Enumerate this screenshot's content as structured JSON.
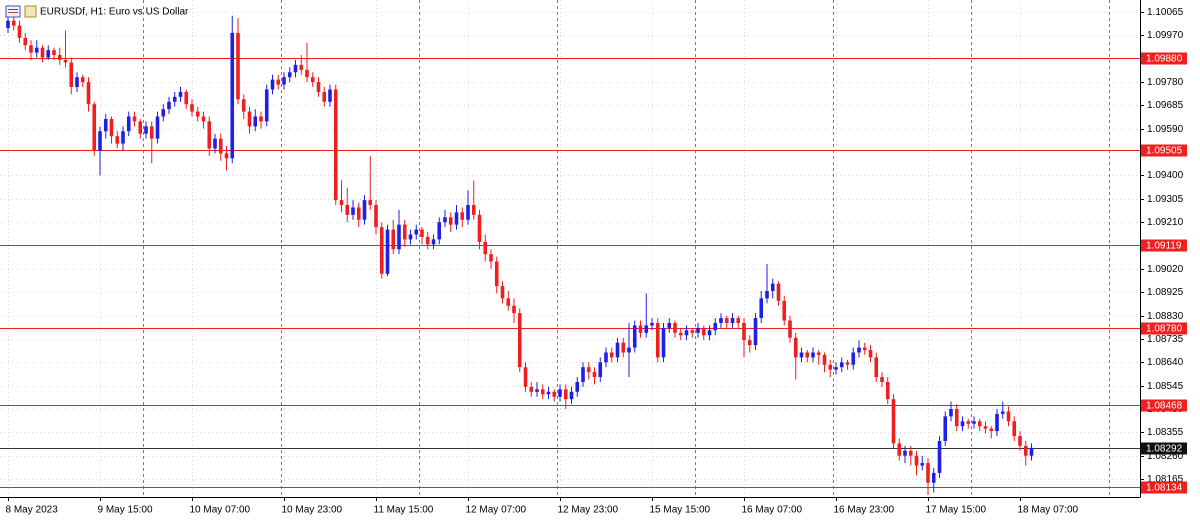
{
  "chart_data": {
    "type": "candlestick",
    "title": "EURUSDf, H1:  Euro vs US Dollar",
    "up_color": "#1f1fe6",
    "down_color": "#f01e1e",
    "grid": true,
    "ylim": [
      1.08092,
      1.10114
    ],
    "yticks": [
      1.10065,
      {
        "value": 1.0997,
        "label": "1.09970"
      },
      {
        "value": 1.0978,
        "label": "1.09780"
      },
      1.09685,
      {
        "value": 1.0959,
        "label": "1.09590"
      },
      {
        "value": 1.094,
        "label": "1.09400"
      },
      1.09305,
      {
        "value": 1.0921,
        "label": "1.09210"
      },
      {
        "value": 1.0902,
        "label": "1.09020"
      },
      1.08925,
      {
        "value": 1.0883,
        "label": "1.08830"
      },
      1.08735,
      {
        "value": 1.0864,
        "label": "1.08640"
      },
      1.08545,
      {
        "value": 1.0845,
        "label": "1.08450"
      },
      1.08355,
      {
        "value": 1.0826,
        "label": "1.08260"
      },
      1.08165
    ],
    "levels": [
      {
        "value": 1.0988,
        "label": "1.09880"
      },
      1.09505,
      1.09119,
      {
        "value": 1.0878,
        "label": "1.08780"
      },
      1.08468,
      1.08134
    ],
    "level_color": "#f01e1e",
    "current_price": 1.08292,
    "categories": [
      "8 May 2023",
      null,
      null,
      null,
      null,
      null,
      null,
      null,
      null,
      null,
      null,
      null,
      null,
      null,
      null,
      null,
      "9 May 15:00",
      null,
      null,
      null,
      null,
      null,
      null,
      null,
      null,
      null,
      null,
      null,
      null,
      null,
      null,
      null,
      "10 May 07:00",
      null,
      null,
      null,
      null,
      null,
      null,
      null,
      null,
      null,
      null,
      null,
      null,
      null,
      null,
      null,
      "10 May 23:00",
      null,
      null,
      null,
      null,
      null,
      null,
      null,
      null,
      null,
      null,
      null,
      null,
      null,
      null,
      null,
      "11 May 15:00",
      null,
      null,
      null,
      null,
      null,
      null,
      null,
      null,
      null,
      null,
      null,
      null,
      null,
      null,
      null,
      "12 May 07:00",
      null,
      null,
      null,
      null,
      null,
      null,
      null,
      null,
      null,
      null,
      null,
      null,
      null,
      null,
      null,
      "12 May 23:00",
      null,
      null,
      null,
      null,
      null,
      null,
      null,
      null,
      null,
      null,
      null,
      null,
      null,
      null,
      null,
      "15 May 15:00",
      null,
      null,
      null,
      null,
      null,
      null,
      null,
      null,
      null,
      null,
      null,
      null,
      null,
      null,
      null,
      "16 May 07:00",
      null,
      null,
      null,
      null,
      null,
      null,
      null,
      null,
      null,
      null,
      null,
      null,
      null,
      null,
      null,
      "16 May 23:00",
      null,
      null,
      null,
      null,
      null,
      null,
      null,
      null,
      null,
      null,
      null,
      null,
      null,
      null,
      null,
      "17 May 15:00",
      null,
      null,
      null,
      null,
      null,
      null,
      null,
      null,
      null,
      null,
      null,
      null,
      null,
      null,
      null,
      "18 May 07:00",
      null,
      null
    ],
    "open": [
      1.1,
      1.1003,
      1.1001,
      1.0996,
      1.0993,
      1.099,
      1.0992,
      1.0988,
      1.0991,
      1.0989,
      1.0987,
      1.0986,
      1.0976,
      1.098,
      1.0978,
      1.0969,
      1.095,
      1.0958,
      1.0963,
      1.0956,
      1.0953,
      1.0958,
      1.0964,
      1.0962,
      1.0957,
      1.096,
      1.0955,
      1.0964,
      1.0967,
      1.097,
      1.0972,
      1.0974,
      1.0969,
      1.0966,
      1.0964,
      1.0962,
      1.0951,
      1.0955,
      1.0949,
      1.0947,
      1.0998,
      1.0971,
      1.0966,
      1.096,
      1.0964,
      1.0962,
      1.0975,
      1.0979,
      1.0977,
      1.098,
      1.0982,
      1.0985,
      1.0983,
      1.098,
      1.0978,
      1.0974,
      1.097,
      1.0975,
      1.093,
      1.0928,
      1.0924,
      1.0927,
      1.0922,
      1.093,
      1.0928,
      1.0919,
      1.09,
      1.0918,
      1.091,
      1.092,
      1.0914,
      1.0916,
      1.0918,
      1.0915,
      1.0912,
      1.0914,
      1.0921,
      1.0923,
      1.092,
      1.0925,
      1.0922,
      1.0928,
      1.0924,
      1.0913,
      1.0908,
      1.0905,
      1.0895,
      1.089,
      1.0887,
      1.0884,
      1.0862,
      1.0854,
      1.0852,
      1.0853,
      1.0851,
      1.0852,
      1.085,
      1.0853,
      1.0849,
      1.0852,
      1.0856,
      1.0862,
      1.086,
      1.0858,
      1.0864,
      1.0868,
      1.0866,
      1.0872,
      1.0868,
      1.087,
      1.0879,
      1.0876,
      1.0879,
      1.088,
      1.0866,
      1.0878,
      1.088,
      1.0876,
      1.0875,
      1.0877,
      1.0876,
      1.0878,
      1.0875,
      1.0877,
      1.088,
      1.0882,
      1.088,
      1.0882,
      1.088,
      1.0873,
      1.0871,
      1.0882,
      1.089,
      1.0893,
      1.0896,
      1.0889,
      1.0881,
      1.0874,
      1.0866,
      1.0868,
      1.0866,
      1.0868,
      1.0867,
      1.0863,
      1.0861,
      1.0862,
      1.0864,
      1.0863,
      1.0868,
      1.087,
      1.0869,
      1.0866,
      1.0858,
      1.0856,
      1.0849,
      1.0831,
      1.0826,
      1.0828,
      1.0826,
      1.0822,
      1.0823,
      1.0815,
      1.0819,
      1.0832,
      1.0842,
      1.0845,
      1.0838,
      1.084,
      1.0839,
      1.084,
      1.0838,
      1.0837,
      1.0836,
      1.0843,
      1.0844,
      1.084,
      1.0834,
      1.083,
      1.0826
    ],
    "high": [
      1.1005,
      1.1005,
      1.1003,
      1.0998,
      1.0995,
      1.0995,
      1.0993,
      1.0993,
      1.0992,
      1.0992,
      1.0999,
      1.0988,
      1.0982,
      1.0981,
      1.098,
      1.097,
      1.096,
      1.0965,
      1.0964,
      1.0958,
      1.096,
      1.0966,
      1.0966,
      1.0963,
      1.0962,
      1.0962,
      1.0966,
      1.0969,
      1.0972,
      1.0974,
      1.0976,
      1.0975,
      1.0971,
      1.0968,
      1.0966,
      1.0964,
      1.0957,
      1.0957,
      1.0952,
      1.1005,
      1.1004,
      1.0973,
      1.0968,
      1.0967,
      1.0966,
      1.0977,
      1.0981,
      1.0981,
      1.0982,
      1.0984,
      1.0987,
      1.0989,
      1.0994,
      1.0982,
      1.098,
      1.0976,
      1.0977,
      1.0977,
      1.0938,
      1.0935,
      1.093,
      1.0929,
      1.0932,
      1.0948,
      1.093,
      1.0921,
      1.092,
      1.0922,
      1.0926,
      1.0922,
      1.0918,
      1.092,
      1.0919,
      1.0917,
      1.0916,
      1.0923,
      1.0926,
      1.0925,
      1.0928,
      1.0927,
      1.0934,
      1.0938,
      1.0926,
      1.0916,
      1.091,
      1.0907,
      1.0897,
      1.0893,
      1.089,
      1.0886,
      1.0864,
      1.0856,
      1.0856,
      1.0855,
      1.0854,
      1.0853,
      1.0855,
      1.0855,
      1.0854,
      1.0858,
      1.0864,
      1.0864,
      1.0862,
      1.0866,
      1.087,
      1.087,
      1.0874,
      1.0874,
      1.088,
      1.0881,
      1.0881,
      1.0892,
      1.0882,
      1.0882,
      1.088,
      1.0882,
      1.0881,
      1.0878,
      1.0879,
      1.0878,
      1.088,
      1.0879,
      1.0879,
      1.0882,
      1.0884,
      1.0883,
      1.0884,
      1.0883,
      1.0882,
      1.0875,
      1.0884,
      1.0893,
      1.0904,
      1.0898,
      1.0897,
      1.0891,
      1.0883,
      1.0876,
      1.087,
      1.0869,
      1.087,
      1.0869,
      1.0868,
      1.0865,
      1.0864,
      1.0866,
      1.0865,
      1.087,
      1.0873,
      1.0872,
      1.0871,
      1.0868,
      1.086,
      1.0858,
      1.0851,
      1.0833,
      1.083,
      1.083,
      1.0828,
      1.0826,
      1.0825,
      1.0821,
      1.0834,
      1.0844,
      1.0848,
      1.0847,
      1.0842,
      1.0841,
      1.0842,
      1.0841,
      1.084,
      1.0838,
      1.0845,
      1.0848,
      1.0846,
      1.0842,
      1.0836,
      1.0832,
      1.0831
    ],
    "low": [
      1.0998,
      1.0999,
      1.0994,
      1.0991,
      1.0987,
      1.0988,
      1.0986,
      1.0987,
      1.0987,
      1.0985,
      1.0984,
      1.0973,
      1.0974,
      1.0976,
      1.0966,
      1.0948,
      1.094,
      1.0955,
      1.0953,
      1.0951,
      1.095,
      1.0956,
      1.096,
      1.0955,
      1.0955,
      1.0945,
      1.0953,
      1.0962,
      1.0965,
      1.0968,
      1.097,
      1.0967,
      1.0964,
      1.0962,
      1.0959,
      1.0948,
      1.0949,
      1.0946,
      1.0942,
      1.0945,
      1.0969,
      1.0963,
      1.0957,
      1.0958,
      1.0959,
      1.096,
      1.0973,
      1.0975,
      1.0975,
      1.0978,
      1.098,
      1.0981,
      1.0978,
      1.0976,
      1.0972,
      1.0968,
      1.0968,
      1.0928,
      1.0925,
      1.0921,
      1.0922,
      1.0919,
      1.092,
      1.0926,
      1.0916,
      1.0898,
      1.0899,
      1.0908,
      1.0908,
      1.0911,
      1.0912,
      1.0914,
      1.0912,
      1.091,
      1.091,
      1.0912,
      1.0919,
      1.0917,
      1.0918,
      1.0919,
      1.092,
      1.0922,
      1.091,
      1.0905,
      1.0902,
      1.0892,
      1.0888,
      1.0885,
      1.088,
      1.086,
      1.0852,
      1.085,
      1.085,
      1.0849,
      1.0849,
      1.0848,
      1.0848,
      1.0845,
      1.0847,
      1.085,
      1.0854,
      1.0857,
      1.0855,
      1.0856,
      1.0862,
      1.0864,
      1.0864,
      1.0866,
      1.0858,
      1.0868,
      1.0874,
      1.0874,
      1.0877,
      1.0864,
      1.0864,
      1.0876,
      1.0874,
      1.0873,
      1.0873,
      1.0874,
      1.0874,
      1.0873,
      1.0873,
      1.0875,
      1.0878,
      1.0878,
      1.0878,
      1.0878,
      1.0866,
      1.0868,
      1.0869,
      1.088,
      1.0888,
      1.089,
      1.0887,
      1.0879,
      1.0872,
      1.0857,
      1.0864,
      1.0864,
      1.0864,
      1.0863,
      1.086,
      1.0858,
      1.0859,
      1.086,
      1.0861,
      1.0861,
      1.0866,
      1.0867,
      1.0864,
      1.0856,
      1.0854,
      1.0847,
      1.0829,
      1.0824,
      1.0823,
      1.0822,
      1.0818,
      1.082,
      1.081,
      1.0811,
      1.0817,
      1.083,
      1.084,
      1.0836,
      1.0836,
      1.0837,
      1.0837,
      1.0836,
      1.0835,
      1.0833,
      1.0834,
      1.0841,
      1.0838,
      1.0832,
      1.0828,
      1.0822,
      1.0824
    ],
    "close": [
      1.1003,
      1.1001,
      1.0996,
      1.0993,
      1.099,
      1.0992,
      1.0988,
      1.0991,
      1.0989,
      1.0987,
      1.0986,
      1.0976,
      1.098,
      1.0978,
      1.0969,
      1.095,
      1.0958,
      1.0963,
      1.0956,
      1.0953,
      1.0958,
      1.0964,
      1.0962,
      1.0957,
      1.096,
      1.0955,
      1.0964,
      1.0967,
      1.097,
      1.0972,
      1.0974,
      1.0969,
      1.0966,
      1.0964,
      1.0962,
      1.0951,
      1.0955,
      1.0949,
      1.0947,
      1.0998,
      1.0971,
      1.0966,
      1.096,
      1.0964,
      1.0962,
      1.0975,
      1.0979,
      1.0977,
      1.098,
      1.0982,
      1.0985,
      1.0983,
      1.098,
      1.0978,
      1.0974,
      1.097,
      1.0975,
      1.093,
      1.0928,
      1.0924,
      1.0927,
      1.0922,
      1.093,
      1.0928,
      1.0919,
      1.09,
      1.0918,
      1.091,
      1.092,
      1.0914,
      1.0916,
      1.0918,
      1.0915,
      1.0912,
      1.0914,
      1.0921,
      1.0923,
      1.092,
      1.0925,
      1.0922,
      1.0928,
      1.0924,
      1.0913,
      1.0908,
      1.0905,
      1.0895,
      1.089,
      1.0887,
      1.0884,
      1.0862,
      1.0854,
      1.0852,
      1.0853,
      1.0851,
      1.0852,
      1.085,
      1.0853,
      1.0849,
      1.0852,
      1.0856,
      1.0862,
      1.086,
      1.0858,
      1.0864,
      1.0868,
      1.0866,
      1.0872,
      1.0868,
      1.087,
      1.0879,
      1.0876,
      1.0879,
      1.088,
      1.0866,
      1.0878,
      1.088,
      1.0876,
      1.0875,
      1.0877,
      1.0876,
      1.0878,
      1.0875,
      1.0877,
      1.088,
      1.0882,
      1.088,
      1.0882,
      1.088,
      1.0873,
      1.0871,
      1.0882,
      1.089,
      1.0893,
      1.0896,
      1.0889,
      1.0881,
      1.0874,
      1.0866,
      1.0868,
      1.0866,
      1.0868,
      1.0867,
      1.0863,
      1.0861,
      1.0862,
      1.0864,
      1.0863,
      1.0868,
      1.087,
      1.0869,
      1.0866,
      1.0858,
      1.0856,
      1.0849,
      1.0831,
      1.0826,
      1.0828,
      1.0826,
      1.0822,
      1.0823,
      1.0815,
      1.0819,
      1.0832,
      1.0842,
      1.0845,
      1.0838,
      1.084,
      1.0839,
      1.084,
      1.0838,
      1.0837,
      1.0836,
      1.0843,
      1.0844,
      1.084,
      1.0834,
      1.083,
      1.0826,
      1.08292
    ]
  }
}
